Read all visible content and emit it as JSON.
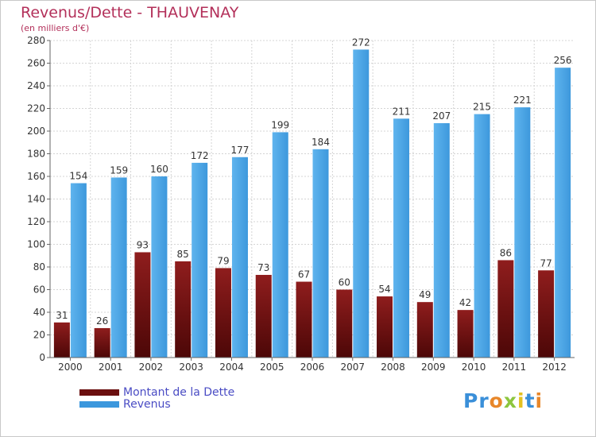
{
  "title": "Revenus/Dette - THAUVENAY",
  "subtitle": "(en milliers d'€)",
  "chart_data": {
    "type": "bar",
    "title": "Revenus/Dette - THAUVENAY",
    "subtitle": "(en milliers d'€)",
    "categories": [
      "2000",
      "2001",
      "2002",
      "2003",
      "2004",
      "2005",
      "2006",
      "2007",
      "2008",
      "2009",
      "2010",
      "2011",
      "2012"
    ],
    "series": [
      {
        "name": "Montant de la Dette",
        "color": "#7a1313",
        "values": [
          31,
          26,
          93,
          85,
          79,
          73,
          67,
          60,
          54,
          49,
          42,
          86,
          77
        ]
      },
      {
        "name": "Revenus",
        "color": "#3b97dd",
        "values": [
          154,
          159,
          160,
          172,
          177,
          199,
          184,
          272,
          211,
          207,
          215,
          221,
          256
        ]
      }
    ],
    "ylim": [
      0,
      280
    ],
    "yticks": [
      0,
      20,
      40,
      60,
      80,
      100,
      120,
      140,
      160,
      180,
      200,
      220,
      240,
      260,
      280
    ],
    "grid": true,
    "legend_position": "bottom-left"
  },
  "legend": [
    {
      "label": "Montant de la Dette",
      "color": "#6b0f0f"
    },
    {
      "label": "Revenus",
      "color": "#3b97dd"
    }
  ],
  "logo": {
    "text": "Proxiti",
    "letter_colors": [
      "#3a8fd9",
      "#3a8fd9",
      "#e8872a",
      "#8dc63f",
      "#e3c020",
      "#3a8fd9",
      "#e8872a"
    ]
  }
}
